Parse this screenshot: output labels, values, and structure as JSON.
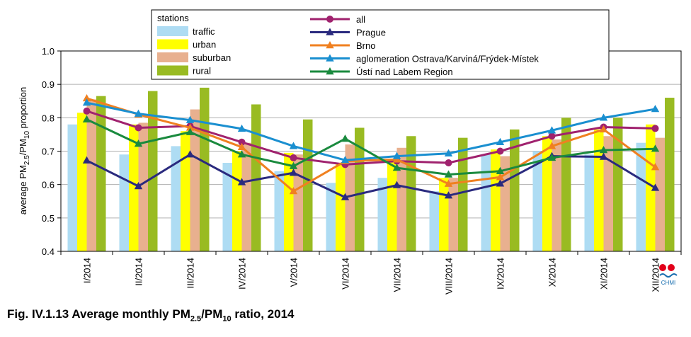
{
  "chart_data": {
    "type": "bar+line",
    "categories": [
      "I/2014",
      "II/2014",
      "III/2014",
      "IV/2014",
      "V/2014",
      "VI/2014",
      "VII/2014",
      "VIII/2014",
      "IX/2014",
      "X/2014",
      "XI/2014",
      "XII/2014"
    ],
    "ylim": [
      0.4,
      1.0
    ],
    "yticks": [
      "0.4",
      "0.5",
      "0.6",
      "0.7",
      "0.8",
      "0.9",
      "1.0"
    ],
    "ylabel": "average PM2.5/PM10 proportion",
    "grid": true,
    "legend_title": "stations",
    "legend_placement": "top-center",
    "bar_series": [
      {
        "name": "traffic",
        "color": "#aedcf3",
        "values": [
          0.78,
          0.69,
          0.715,
          0.665,
          0.64,
          0.605,
          0.62,
          0.58,
          0.69,
          0.7,
          0.69,
          0.725
        ]
      },
      {
        "name": "urban",
        "color": "#ffff00",
        "values": [
          0.815,
          0.78,
          0.76,
          0.7,
          0.695,
          0.665,
          0.675,
          0.62,
          0.705,
          0.745,
          0.765,
          0.78
        ]
      },
      {
        "name": "suburban",
        "color": "#e8b08f",
        "values": [
          0.855,
          0.785,
          0.825,
          0.725,
          0.69,
          0.72,
          0.71,
          0.62,
          0.685,
          0.735,
          0.745,
          0.74
        ]
      },
      {
        "name": "rural",
        "color": "#99bb22",
        "values": [
          0.865,
          0.88,
          0.89,
          0.84,
          0.795,
          0.77,
          0.745,
          0.74,
          0.765,
          0.8,
          0.8,
          0.86
        ]
      }
    ],
    "line_series": [
      {
        "name": "all",
        "color": "#a0226e",
        "marker": "circle",
        "values": [
          0.82,
          0.77,
          0.775,
          0.727,
          0.68,
          0.66,
          0.67,
          0.665,
          0.7,
          0.745,
          0.772,
          0.768
        ]
      },
      {
        "name": "Prague",
        "color": "#2a2a7e",
        "marker": "triangle",
        "values": [
          0.672,
          0.595,
          0.69,
          0.607,
          0.635,
          0.562,
          0.598,
          0.567,
          0.603,
          0.685,
          0.683,
          0.59
        ]
      },
      {
        "name": "Brno",
        "color": "#f08020",
        "marker": "triangle",
        "values": [
          0.858,
          0.81,
          0.77,
          0.712,
          0.58,
          0.67,
          0.675,
          0.602,
          0.622,
          0.715,
          0.765,
          0.652
        ]
      },
      {
        "name": "aglomeration Ostrava/Karviná/Frýdek-Místek",
        "color": "#1a8fd0",
        "marker": "triangle",
        "values": [
          0.845,
          0.812,
          0.793,
          0.767,
          0.715,
          0.673,
          0.685,
          0.693,
          0.727,
          0.762,
          0.8,
          0.826
        ]
      },
      {
        "name": "Ústí nad Labem Region",
        "color": "#1a8a3e",
        "marker": "triangle",
        "values": [
          0.795,
          0.722,
          0.757,
          0.69,
          0.655,
          0.737,
          0.65,
          0.63,
          0.64,
          0.68,
          0.703,
          0.707
        ]
      }
    ]
  },
  "caption": {
    "prefix": "Fig. IV.1.13  Average monthly PM",
    "sub1": "2.5",
    "mid": "/PM",
    "sub2": "10",
    "suffix": " ratio, 2014"
  },
  "ylabel_parts": {
    "a": "average PM",
    "s1": "2.5",
    "b": "/PM",
    "s2": "10",
    "c": " proportion"
  },
  "logo_text": "CHMI"
}
